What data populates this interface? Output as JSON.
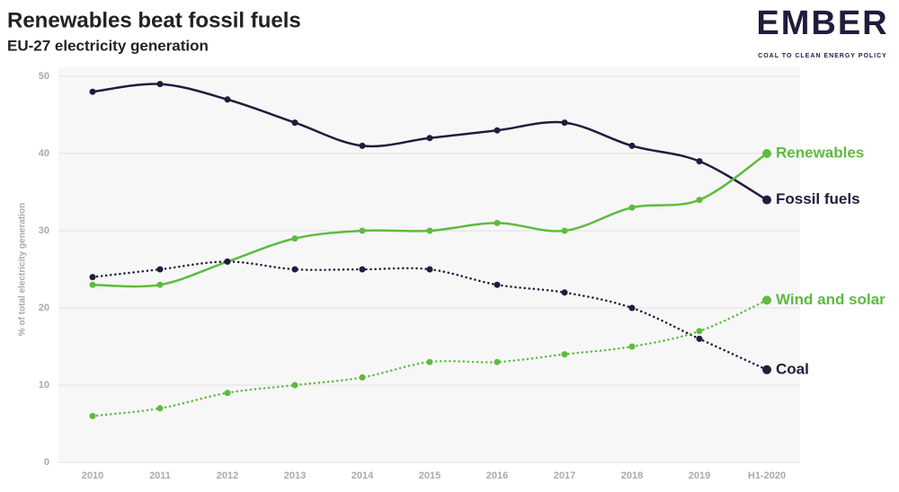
{
  "chart_data": {
    "type": "line",
    "title": "Renewables beat fossil fuels",
    "subtitle": "EU-27 electricity generation",
    "logo": "EMBER",
    "logo_tagline": "COAL TO CLEAN ENERGY POLICY",
    "y_label": "% of total electricity generation",
    "categories": [
      "2010",
      "2011",
      "2012",
      "2013",
      "2014",
      "2015",
      "2016",
      "2017",
      "2018",
      "2019",
      "H1-2020"
    ],
    "series": [
      {
        "name": "Fossil fuels",
        "color": "#1f1d3d",
        "style": "solid",
        "values": [
          48,
          49,
          47,
          44,
          41,
          42,
          43,
          44,
          41,
          39,
          34
        ]
      },
      {
        "name": "Renewables",
        "color": "#5dbb3f",
        "style": "solid",
        "values": [
          23,
          23,
          26,
          29,
          30,
          30,
          31,
          30,
          33,
          34,
          40
        ]
      },
      {
        "name": "Coal",
        "color": "#1f1d3d",
        "style": "dotted",
        "values": [
          24,
          25,
          26,
          25,
          25,
          25,
          23,
          22,
          20,
          16,
          12
        ]
      },
      {
        "name": "Wind and solar",
        "color": "#5dbb3f",
        "style": "dotted",
        "values": [
          6,
          7,
          9,
          10,
          11,
          13,
          13,
          14,
          15,
          17,
          21
        ]
      }
    ],
    "ylim": [
      0,
      50
    ],
    "yticks": [
      0,
      10,
      20,
      30,
      40,
      50
    ],
    "grid": true
  }
}
